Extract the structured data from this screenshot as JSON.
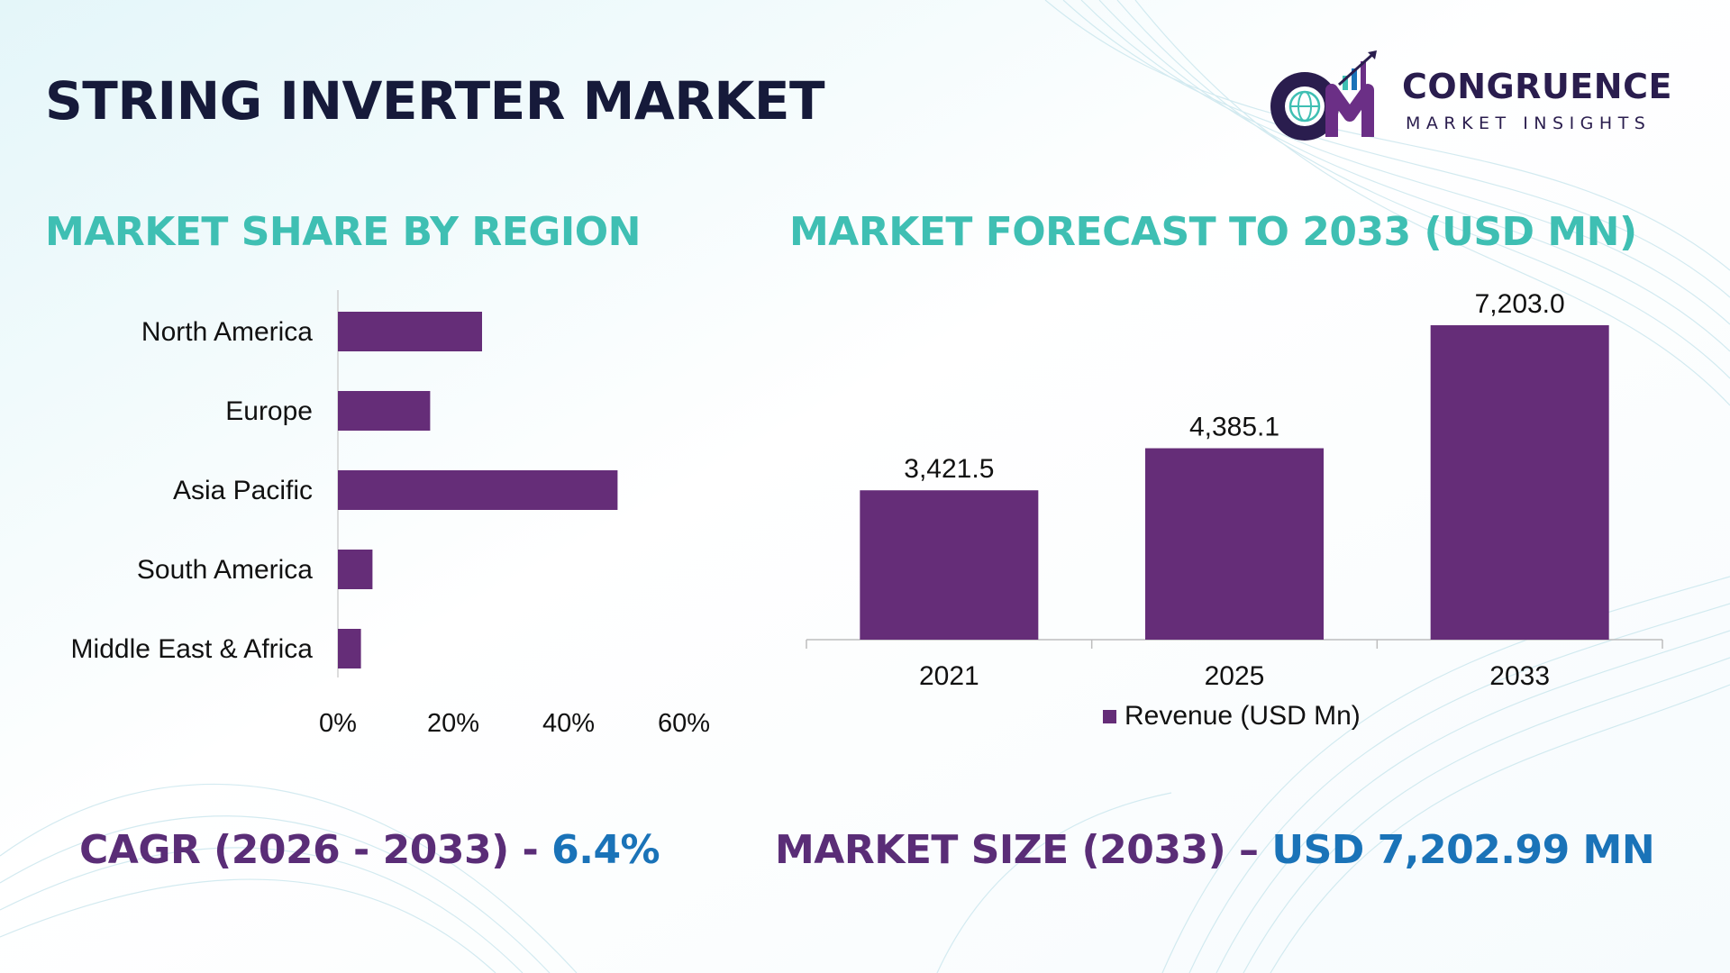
{
  "header": {
    "title": "STRING INVERTER MARKET"
  },
  "logo": {
    "name": "CONGRUENCE",
    "tagline": "MARKET INSIGHTS"
  },
  "sections": {
    "region_title": "MARKET SHARE BY REGION",
    "forecast_title": "MARKET FORECAST TO 2033 (USD MN)"
  },
  "footer": {
    "cagr_label": "CAGR (2026 - 2033) - ",
    "cagr_value": "6.4%",
    "size_label": "MARKET SIZE (2033) – ",
    "size_value": "USD 7,202.99 MN"
  },
  "colors": {
    "bar": "#652d78",
    "title_teal": "#3fbfb3",
    "accent_purple": "#5a2d77",
    "accent_blue": "#1a73b8",
    "heading_dark": "#161a3a"
  },
  "chart_data": [
    {
      "type": "bar",
      "orientation": "horizontal",
      "title": "MARKET SHARE BY REGION",
      "categories": [
        "North America",
        "Europe",
        "Asia Pacific",
        "South America",
        "Middle East & Africa"
      ],
      "values": [
        25,
        16,
        48.5,
        6,
        4
      ],
      "unit": "%",
      "xlim": [
        0,
        60
      ],
      "xticks": [
        "0%",
        "20%",
        "40%",
        "60%"
      ],
      "grid": false
    },
    {
      "type": "bar",
      "title": "MARKET FORECAST TO 2033 (USD MN)",
      "categories": [
        "2021",
        "2025",
        "2033"
      ],
      "series": [
        {
          "name": "Revenue (USD Mn)",
          "values": [
            3421.5,
            4385.1,
            7203.0
          ],
          "labels": [
            "3,421.5",
            "4,385.1",
            "7,203.0"
          ]
        }
      ],
      "ylim": [
        0,
        7203
      ],
      "legend": "bottom",
      "grid": false
    }
  ]
}
